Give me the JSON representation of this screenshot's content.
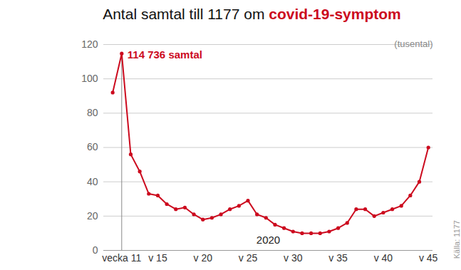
{
  "chart_data": {
    "type": "line",
    "title": "Antal samtal till 1177 om covid-19-symptom",
    "title_highlight": "covid-19-symptom",
    "ylabel": "(tusental)",
    "xlabel": "2020",
    "source": "Källa: 1177",
    "x": [
      10,
      11,
      12,
      13,
      14,
      15,
      16,
      17,
      18,
      19,
      20,
      21,
      22,
      23,
      24,
      25,
      26,
      27,
      28,
      29,
      30,
      31,
      32,
      33,
      34,
      35,
      36,
      37,
      38,
      39,
      40,
      41,
      42,
      43,
      44,
      45
    ],
    "values": [
      92,
      114.736,
      56,
      46,
      33,
      32,
      27,
      24,
      25,
      21,
      18,
      19,
      21,
      24,
      26,
      29,
      21,
      19,
      15,
      13,
      11,
      10,
      10,
      10,
      11,
      13,
      16,
      24,
      24,
      20,
      22,
      24,
      26,
      32,
      40,
      60
    ],
    "color": "#cc0a1e",
    "marker": "dot",
    "xlim": [
      9,
      45.5
    ],
    "xticks": [
      {
        "value": 11,
        "label": "vecka 11"
      },
      {
        "value": 15,
        "label": "v 15"
      },
      {
        "value": 20,
        "label": "v 20"
      },
      {
        "value": 25,
        "label": "v 25"
      },
      {
        "value": 30,
        "label": "v 30"
      },
      {
        "value": 35,
        "label": "v 35"
      },
      {
        "value": 40,
        "label": "v 40"
      },
      {
        "value": 45,
        "label": "v 45"
      }
    ],
    "ylim": [
      0,
      120
    ],
    "yticks": [
      0,
      20,
      40,
      60,
      80,
      100,
      120
    ],
    "grid": true,
    "annotations": [
      {
        "text": "114 736 samtal",
        "x": 11,
        "y": 114.736
      }
    ]
  }
}
